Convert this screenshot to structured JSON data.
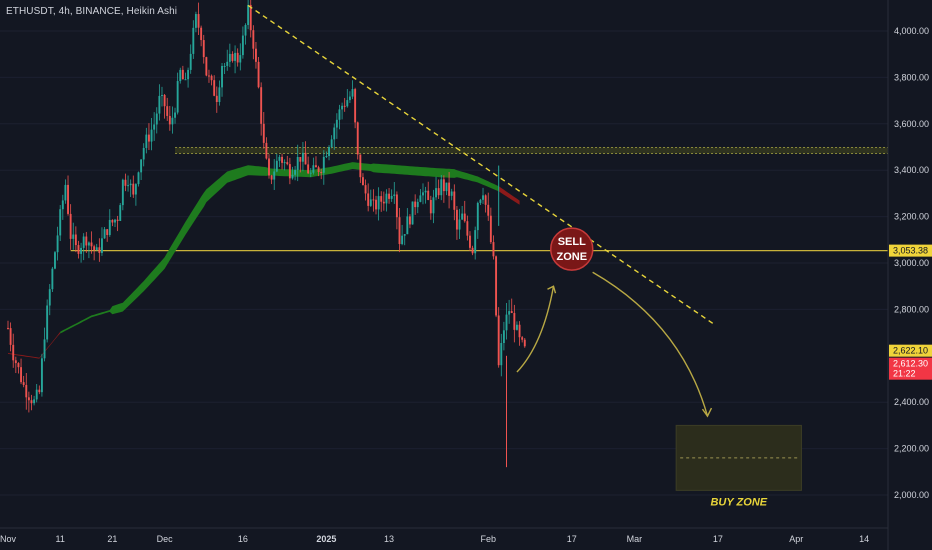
{
  "header": {
    "symbol_line": "ETHUSDT, 4h, BINANCE, Heikin Ashi"
  },
  "colors": {
    "background": "#131722",
    "up_candle": "#26a69a",
    "down_candle": "#ef5350",
    "ribbon_green": "#1e7b1e",
    "ribbon_red": "#8b1a1a",
    "level_line": "#c8b23a",
    "trendline": "#e8d53a",
    "arrow": "#b8a844",
    "sell_circle": "#7a1717",
    "price_tag_yellow": "#f0d43a",
    "price_tag_red": "#f23645"
  },
  "annotations": {
    "sell_zone_line1": "SELL",
    "sell_zone_line2": "ZONE",
    "buy_zone": "BUY ZONE"
  },
  "price_tags": {
    "level": "3,053.38",
    "current": "2,622.10",
    "last": "2,612.30",
    "countdown": "21:22"
  },
  "chart_data": {
    "type": "candlestick",
    "style": "Heikin Ashi",
    "timeframe": "4h",
    "ylim": [
      1950,
      4180
    ],
    "y_ticks": [
      {
        "value": 4000,
        "label": "4,000.00"
      },
      {
        "value": 3800,
        "label": "3,800.00"
      },
      {
        "value": 3600,
        "label": "3,600.00"
      },
      {
        "value": 3400,
        "label": "3,400.00"
      },
      {
        "value": 3200,
        "label": "3,200.00"
      },
      {
        "value": 3000,
        "label": "3,000.00"
      },
      {
        "value": 2800,
        "label": "2,800.00"
      },
      {
        "value": 2400,
        "label": "2,400.00"
      },
      {
        "value": 2200,
        "label": "2,200.00"
      },
      {
        "value": 2000,
        "label": "2,000.00"
      }
    ],
    "x_ticks": [
      {
        "day": 0,
        "label": "Nov"
      },
      {
        "day": 10,
        "label": "11"
      },
      {
        "day": 20,
        "label": "21"
      },
      {
        "day": 30,
        "label": "Dec"
      },
      {
        "day": 45,
        "label": "16"
      },
      {
        "day": 61,
        "label": "2025",
        "bold": true
      },
      {
        "day": 73,
        "label": "13"
      },
      {
        "day": 92,
        "label": "Feb"
      },
      {
        "day": 108,
        "label": "17"
      },
      {
        "day": 120,
        "label": "Mar"
      },
      {
        "day": 136,
        "label": "17"
      },
      {
        "day": 151,
        "label": "Apr"
      },
      {
        "day": 164,
        "label": "14"
      }
    ],
    "price_path": [
      [
        0,
        2720
      ],
      [
        1,
        2610
      ],
      [
        3,
        2470
      ],
      [
        5,
        2400
      ],
      [
        6,
        2440
      ],
      [
        7,
        2700
      ],
      [
        8,
        2880
      ],
      [
        9,
        3050
      ],
      [
        10,
        3200
      ],
      [
        11,
        3340
      ],
      [
        12,
        3120
      ],
      [
        13,
        3060
      ],
      [
        15,
        3110
      ],
      [
        17,
        3040
      ],
      [
        19,
        3150
      ],
      [
        21,
        3200
      ],
      [
        22,
        3350
      ],
      [
        23,
        3370
      ],
      [
        24,
        3280
      ],
      [
        25,
        3420
      ],
      [
        26,
        3500
      ],
      [
        28,
        3600
      ],
      [
        29,
        3700
      ],
      [
        30,
        3680
      ],
      [
        31,
        3580
      ],
      [
        32,
        3680
      ],
      [
        33,
        3820
      ],
      [
        34,
        3760
      ],
      [
        35,
        3920
      ],
      [
        36,
        4050
      ],
      [
        37,
        3990
      ],
      [
        38,
        3820
      ],
      [
        39,
        3760
      ],
      [
        40,
        3720
      ],
      [
        41,
        3860
      ],
      [
        42,
        3840
      ],
      [
        43,
        3900
      ],
      [
        44,
        3880
      ],
      [
        45,
        3960
      ],
      [
        46,
        4080
      ],
      [
        47,
        3950
      ],
      [
        48,
        3750
      ],
      [
        49,
        3500
      ],
      [
        50,
        3350
      ],
      [
        52,
        3460
      ],
      [
        54,
        3400
      ],
      [
        56,
        3460
      ],
      [
        58,
        3380
      ],
      [
        60,
        3420
      ],
      [
        62,
        3560
      ],
      [
        64,
        3680
      ],
      [
        66,
        3730
      ],
      [
        67,
        3450
      ],
      [
        68,
        3320
      ],
      [
        70,
        3240
      ],
      [
        72,
        3280
      ],
      [
        74,
        3330
      ],
      [
        75,
        3100
      ],
      [
        77,
        3200
      ],
      [
        79,
        3320
      ],
      [
        81,
        3240
      ],
      [
        83,
        3340
      ],
      [
        85,
        3290
      ],
      [
        86,
        3140
      ],
      [
        87,
        3200
      ],
      [
        88,
        3120
      ],
      [
        89,
        3060
      ],
      [
        90,
        3270
      ],
      [
        91,
        3320
      ],
      [
        92,
        3180
      ],
      [
        93,
        3000
      ],
      [
        94,
        2550
      ],
      [
        95,
        2720
      ],
      [
        96,
        2800
      ],
      [
        97,
        2740
      ],
      [
        98,
        2660
      ],
      [
        99,
        2620
      ]
    ],
    "ribbon": [
      [
        0,
        2610
      ],
      [
        6,
        2590
      ],
      [
        10,
        2700
      ],
      [
        16,
        2770
      ],
      [
        22,
        2810
      ],
      [
        26,
        2900
      ],
      [
        30,
        3000
      ],
      [
        34,
        3150
      ],
      [
        38,
        3290
      ],
      [
        42,
        3370
      ],
      [
        46,
        3400
      ],
      [
        52,
        3390
      ],
      [
        58,
        3385
      ],
      [
        62,
        3400
      ],
      [
        66,
        3420
      ],
      [
        70,
        3410
      ],
      [
        76,
        3400
      ],
      [
        82,
        3390
      ],
      [
        86,
        3385
      ],
      [
        90,
        3360
      ],
      [
        94,
        3320
      ],
      [
        98,
        3260
      ]
    ],
    "horizontal_levels": [
      {
        "value": 3053.38,
        "style": "solid"
      },
      {
        "value": 3485,
        "style": "dotted-band"
      }
    ],
    "trendline": {
      "start": [
        46,
        4110
      ],
      "end": [
        135,
        2740
      ]
    },
    "sell_zone": {
      "day": 108,
      "price": 3060
    },
    "buy_zone": {
      "day_start": 128,
      "day_end": 152,
      "price_low": 2020,
      "price_high": 2300,
      "mid": 2160
    }
  }
}
